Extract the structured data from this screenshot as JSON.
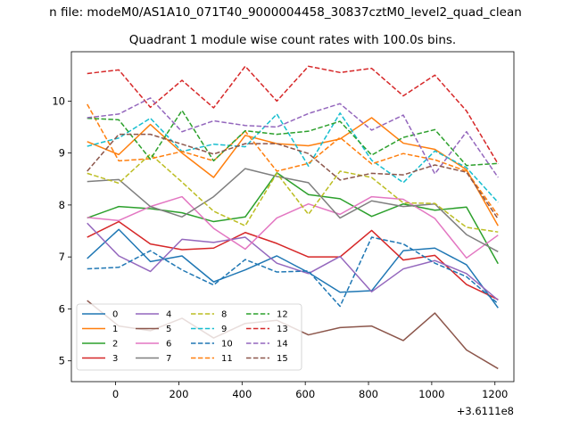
{
  "chart_data": {
    "type": "line",
    "suptitle": "n file: modeM0/AS1A10_071T40_9000004458_30837cztM0_level2_quad_clean",
    "title": "Quadrant 1 module wise count rates with 100.0s bins.",
    "xlabel": "",
    "ylabel": "",
    "offset_label": "+3.6111e8",
    "xlim": [
      -140,
      1260
    ],
    "ylim": [
      4.6,
      10.95
    ],
    "x_ticks": [
      0,
      200,
      400,
      600,
      800,
      1000,
      1200
    ],
    "y_ticks": [
      5,
      6,
      7,
      8,
      9,
      10
    ],
    "x": [
      -90,
      10,
      110,
      210,
      310,
      410,
      510,
      610,
      710,
      810,
      910,
      1010,
      1110,
      1210
    ],
    "legend_position": "lower-left",
    "series": [
      {
        "name": "0",
        "color": "#1f77b4",
        "style": "solid",
        "values": [
          6.97,
          7.53,
          6.91,
          7.02,
          6.52,
          6.75,
          7.02,
          6.7,
          6.32,
          6.35,
          7.12,
          7.17,
          6.85,
          6.02
        ]
      },
      {
        "name": "1",
        "color": "#ff7f0e",
        "style": "solid",
        "values": [
          9.22,
          8.97,
          9.55,
          9.0,
          8.53,
          9.34,
          9.18,
          9.14,
          9.27,
          9.68,
          9.19,
          9.07,
          8.68,
          7.6
        ]
      },
      {
        "name": "2",
        "color": "#2ca02c",
        "style": "solid",
        "values": [
          7.75,
          7.97,
          7.93,
          7.85,
          7.68,
          7.77,
          8.62,
          8.2,
          8.12,
          7.78,
          8.02,
          7.9,
          7.96,
          6.87
        ]
      },
      {
        "name": "3",
        "color": "#d62728",
        "style": "solid",
        "values": [
          7.38,
          7.68,
          7.25,
          7.14,
          7.17,
          7.47,
          7.26,
          7.0,
          7.0,
          7.51,
          6.94,
          7.03,
          6.47,
          6.18
        ]
      },
      {
        "name": "4",
        "color": "#9467bd",
        "style": "solid",
        "values": [
          7.65,
          7.02,
          6.72,
          7.34,
          7.28,
          7.38,
          6.88,
          6.68,
          7.01,
          6.33,
          6.77,
          6.93,
          6.68,
          6.17
        ]
      },
      {
        "name": "5",
        "color": "#8c564b",
        "style": "solid",
        "values": [
          6.16,
          5.67,
          5.58,
          5.82,
          5.44,
          5.72,
          5.78,
          5.5,
          5.64,
          5.67,
          5.39,
          5.92,
          5.21,
          4.85
        ]
      },
      {
        "name": "6",
        "color": "#e377c2",
        "style": "solid",
        "values": [
          7.76,
          7.7,
          7.97,
          8.16,
          7.55,
          7.15,
          7.75,
          8.02,
          7.82,
          8.16,
          8.11,
          7.74,
          6.98,
          7.42
        ]
      },
      {
        "name": "7",
        "color": "#7f7f7f",
        "style": "solid",
        "values": [
          8.45,
          8.49,
          7.97,
          7.77,
          8.16,
          8.7,
          8.55,
          8.43,
          7.75,
          8.08,
          7.97,
          8.02,
          7.43,
          7.1
        ]
      },
      {
        "name": "8",
        "color": "#bcbd22",
        "style": "dashed",
        "values": [
          8.61,
          8.42,
          8.98,
          8.44,
          7.88,
          7.6,
          8.61,
          7.82,
          8.65,
          8.53,
          8.04,
          8.03,
          7.57,
          7.48
        ]
      },
      {
        "name": "9",
        "color": "#17becf",
        "style": "dashed",
        "values": [
          9.13,
          9.29,
          9.67,
          9.03,
          9.17,
          9.12,
          9.75,
          8.75,
          9.77,
          8.86,
          8.43,
          9.04,
          8.72,
          8.05
        ]
      },
      {
        "name": "10",
        "color": "#1f77b4",
        "style": "dashed",
        "values": [
          6.77,
          6.8,
          7.12,
          6.75,
          6.46,
          6.95,
          6.71,
          6.73,
          6.05,
          7.38,
          7.25,
          6.88,
          6.62,
          6.1
        ]
      },
      {
        "name": "11",
        "color": "#ff7f0e",
        "style": "dashed",
        "values": [
          9.94,
          8.85,
          8.89,
          9.03,
          8.85,
          9.42,
          8.65,
          8.8,
          9.3,
          8.79,
          8.99,
          8.87,
          8.65,
          7.8
        ]
      },
      {
        "name": "12",
        "color": "#2ca02c",
        "style": "dashed",
        "values": [
          9.67,
          9.64,
          8.88,
          9.82,
          8.85,
          9.43,
          9.36,
          9.42,
          9.61,
          8.96,
          9.3,
          9.45,
          8.76,
          8.8
        ]
      },
      {
        "name": "13",
        "color": "#d62728",
        "style": "dashed",
        "values": [
          10.53,
          10.6,
          9.88,
          10.4,
          9.87,
          10.67,
          10.0,
          10.67,
          10.55,
          10.63,
          10.1,
          10.5,
          9.81,
          8.79
        ]
      },
      {
        "name": "14",
        "color": "#9467bd",
        "style": "dashed",
        "values": [
          9.68,
          9.75,
          10.06,
          9.41,
          9.62,
          9.53,
          9.5,
          9.76,
          9.95,
          9.44,
          9.73,
          8.6,
          9.41,
          8.53
        ]
      },
      {
        "name": "15",
        "color": "#8c564b",
        "style": "dashed",
        "values": [
          8.65,
          9.36,
          9.36,
          9.17,
          8.98,
          9.18,
          9.18,
          8.99,
          8.48,
          8.61,
          8.58,
          8.77,
          8.63,
          7.73
        ]
      }
    ]
  }
}
